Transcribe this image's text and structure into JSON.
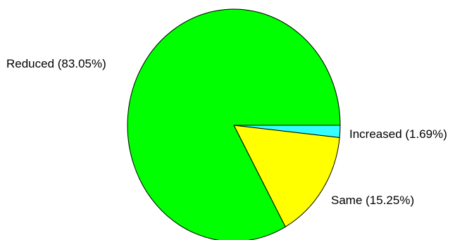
{
  "chart_data": {
    "type": "pie",
    "categories": [
      "Increased",
      "Same",
      "Reduced"
    ],
    "values": [
      1.69,
      15.25,
      83.05
    ],
    "labels": [
      "Increased (1.69%)",
      "Same (15.25%)",
      "Reduced (83.05%)"
    ],
    "colors": [
      "#33ffff",
      "#ffff00",
      "#00ff00"
    ],
    "start_angle_deg": 0,
    "direction": "clockwise",
    "legend": "none"
  }
}
